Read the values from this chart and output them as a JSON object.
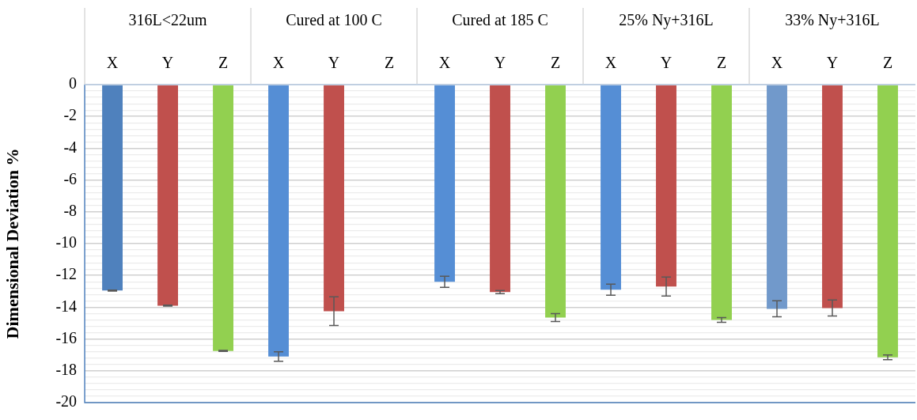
{
  "chart_data": {
    "type": "bar",
    "ylabel": "Dimensional Deviation %",
    "categories": [
      "X",
      "Y",
      "Z",
      "X",
      "Y",
      "Z",
      "X",
      "Y",
      "Z",
      "X",
      "Y",
      "Z",
      "X",
      "Y",
      "Z"
    ],
    "values": [
      -12.95,
      -13.9,
      -16.75,
      -17.1,
      -14.25,
      null,
      -12.4,
      -13.05,
      -14.65,
      -12.9,
      -12.7,
      -14.8,
      -14.1,
      -14.05,
      -17.15
    ],
    "colors": [
      "#4f81bd",
      "#c0504d",
      "#92d050",
      "#558ed5",
      "#c0504d",
      "#92d050",
      "#558ed5",
      "#c0504d",
      "#92d050",
      "#558ed5",
      "#c0504d",
      "#92d050",
      "#7199cb",
      "#c0504d",
      "#92d050"
    ],
    "errors": [
      0.03,
      0.03,
      0.03,
      0.3,
      0.9,
      null,
      0.35,
      0.1,
      0.25,
      0.35,
      0.6,
      0.15,
      0.5,
      0.5,
      0.15
    ],
    "annotations": [
      "316L<22um",
      "Cured at 100 C",
      "Cured at 185 C",
      "25% Ny+316L",
      "33% Ny+316L"
    ],
    "ylim": [
      -20,
      0
    ],
    "yticks": [
      0,
      {
        "value": -0.4,
        "label": null
      },
      {
        "value": -0.8,
        "label": null
      },
      {
        "value": -1.2,
        "label": null
      },
      {
        "value": -1.6,
        "label": null
      },
      -2,
      {
        "value": -2.4,
        "label": null
      },
      {
        "value": -2.8,
        "label": null
      },
      {
        "value": -3.2,
        "label": null
      },
      {
        "value": -3.6,
        "label": null
      },
      -4,
      {
        "value": -4.4,
        "label": null
      },
      {
        "value": -4.8,
        "label": null
      },
      {
        "value": -5.2,
        "label": null
      },
      {
        "value": -5.6,
        "label": null
      },
      -6,
      {
        "value": -6.4,
        "label": null
      },
      {
        "value": -6.8,
        "label": null
      },
      {
        "value": -7.2,
        "label": null
      },
      {
        "value": -7.6,
        "label": null
      },
      -8,
      {
        "value": -8.4,
        "label": null
      },
      {
        "value": -8.8,
        "label": null
      },
      {
        "value": -9.2,
        "label": null
      },
      {
        "value": -9.6,
        "label": null
      },
      -10,
      {
        "value": -10.4,
        "label": null
      },
      {
        "value": -10.8,
        "label": null
      },
      {
        "value": -11.2,
        "label": null
      },
      {
        "value": -11.6,
        "label": null
      },
      -12,
      {
        "value": -12.4,
        "label": null
      },
      {
        "value": -12.8,
        "label": null
      },
      {
        "value": -13.2,
        "label": null
      },
      {
        "value": -13.6,
        "label": null
      },
      -14,
      {
        "value": -14.4,
        "label": null
      },
      {
        "value": -14.8,
        "label": null
      },
      {
        "value": -15.2,
        "label": null
      },
      {
        "value": -15.6,
        "label": null
      },
      -16,
      {
        "value": -16.4,
        "label": null
      },
      {
        "value": -16.8,
        "label": null
      },
      {
        "value": -17.2,
        "label": null
      },
      {
        "value": -17.6,
        "label": null
      },
      -18,
      {
        "value": -18.4,
        "label": null
      },
      {
        "value": -18.8,
        "label": null
      },
      {
        "value": -19.2,
        "label": null
      },
      {
        "value": -19.6,
        "label": null
      },
      -20
    ],
    "grid": "y",
    "legend": false
  }
}
